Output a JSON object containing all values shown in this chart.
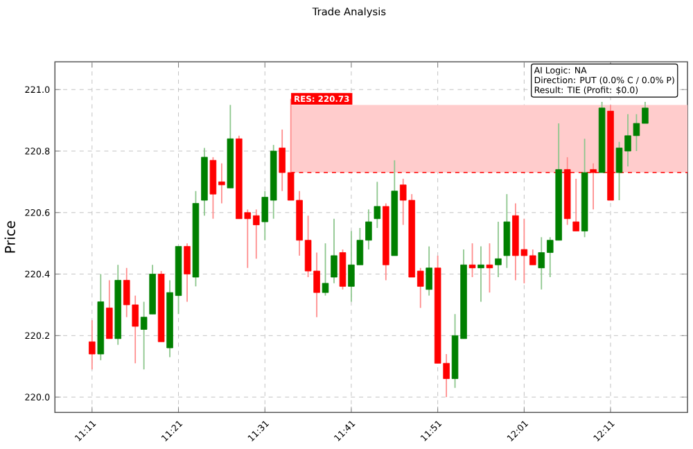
{
  "chart_data": {
    "type": "candlestick",
    "title": "Trade Analysis",
    "ylabel": "Price",
    "x": [
      11.1833,
      11.2,
      11.2167,
      11.2333,
      11.25,
      11.2667,
      11.2833,
      11.3,
      11.3167,
      11.3333,
      11.35,
      11.3667,
      11.3833,
      11.4,
      11.4167,
      11.4333,
      11.45,
      11.4667,
      11.4833,
      11.5,
      11.5167,
      11.5333,
      11.55,
      11.5667,
      11.5833,
      11.6,
      11.6167,
      11.6333,
      11.65,
      11.6667,
      11.6833,
      11.7,
      11.7167,
      11.7333,
      11.75,
      11.7667,
      11.7833,
      11.8,
      11.8167,
      11.8333,
      11.85,
      11.8667,
      11.8833,
      11.9,
      11.9167,
      11.9333,
      11.95,
      11.9667,
      11.9833,
      12.0,
      12.0167,
      12.0333,
      12.05,
      12.0667,
      12.0833,
      12.1,
      12.1167,
      12.1333,
      12.15,
      12.1667,
      12.1833,
      12.2,
      12.2167,
      12.2333,
      12.25
    ],
    "ohlc": [
      [
        220.18,
        220.25,
        220.09,
        220.14
      ],
      [
        220.14,
        220.4,
        220.12,
        220.31
      ],
      [
        220.29,
        220.38,
        220.19,
        220.19
      ],
      [
        220.19,
        220.43,
        220.17,
        220.38
      ],
      [
        220.38,
        220.42,
        220.26,
        220.3
      ],
      [
        220.3,
        220.33,
        220.11,
        220.23
      ],
      [
        220.22,
        220.31,
        220.09,
        220.26
      ],
      [
        220.27,
        220.43,
        220.27,
        220.4
      ],
      [
        220.4,
        220.41,
        220.18,
        220.18
      ],
      [
        220.16,
        220.38,
        220.13,
        220.34
      ],
      [
        220.33,
        220.49,
        220.27,
        220.49
      ],
      [
        220.49,
        220.5,
        220.31,
        220.4
      ],
      [
        220.39,
        220.67,
        220.36,
        220.63
      ],
      [
        220.64,
        220.81,
        220.59,
        220.78
      ],
      [
        220.77,
        220.78,
        220.58,
        220.66
      ],
      [
        220.7,
        220.76,
        220.63,
        220.69
      ],
      [
        220.68,
        220.95,
        220.68,
        220.84
      ],
      [
        220.84,
        220.85,
        220.58,
        220.58
      ],
      [
        220.6,
        220.61,
        220.42,
        220.58
      ],
      [
        220.59,
        220.61,
        220.45,
        220.56
      ],
      [
        220.57,
        220.67,
        220.51,
        220.65
      ],
      [
        220.64,
        220.82,
        220.58,
        220.8
      ],
      [
        220.81,
        220.87,
        220.67,
        220.73
      ],
      [
        220.73,
        220.97,
        220.64,
        220.64
      ],
      [
        220.64,
        220.67,
        220.46,
        220.51
      ],
      [
        220.51,
        220.59,
        220.39,
        220.41
      ],
      [
        220.41,
        220.47,
        220.26,
        220.34
      ],
      [
        220.34,
        220.5,
        220.33,
        220.37
      ],
      [
        220.39,
        220.58,
        220.37,
        220.46
      ],
      [
        220.47,
        220.48,
        220.35,
        220.36
      ],
      [
        220.36,
        220.54,
        220.31,
        220.43
      ],
      [
        220.43,
        220.55,
        220.43,
        220.51
      ],
      [
        220.51,
        220.61,
        220.48,
        220.57
      ],
      [
        220.58,
        220.7,
        220.55,
        220.62
      ],
      [
        220.62,
        220.63,
        220.38,
        220.43
      ],
      [
        220.46,
        220.77,
        220.46,
        220.67
      ],
      [
        220.69,
        220.71,
        220.56,
        220.64
      ],
      [
        220.64,
        220.66,
        220.39,
        220.39
      ],
      [
        220.41,
        220.42,
        220.29,
        220.36
      ],
      [
        220.35,
        220.49,
        220.33,
        220.42
      ],
      [
        220.42,
        220.46,
        220.11,
        220.11
      ],
      [
        220.11,
        220.14,
        220.0,
        220.06
      ],
      [
        220.06,
        220.27,
        220.03,
        220.2
      ],
      [
        220.19,
        220.48,
        220.19,
        220.43
      ],
      [
        220.43,
        220.5,
        220.39,
        220.42
      ],
      [
        220.42,
        220.49,
        220.31,
        220.43
      ],
      [
        220.43,
        220.5,
        220.34,
        220.42
      ],
      [
        220.43,
        220.57,
        220.39,
        220.45
      ],
      [
        220.46,
        220.66,
        220.42,
        220.57
      ],
      [
        220.59,
        220.63,
        220.38,
        220.46
      ],
      [
        220.48,
        220.58,
        220.37,
        220.46
      ],
      [
        220.46,
        220.48,
        220.43,
        220.43
      ],
      [
        220.42,
        220.52,
        220.35,
        220.47
      ],
      [
        220.47,
        220.52,
        220.39,
        220.51
      ],
      [
        220.51,
        220.89,
        220.51,
        220.74
      ],
      [
        220.74,
        220.78,
        220.56,
        220.58
      ],
      [
        220.57,
        220.71,
        220.54,
        220.54
      ],
      [
        220.54,
        220.84,
        220.52,
        220.73
      ],
      [
        220.74,
        220.76,
        220.61,
        220.73
      ],
      [
        220.73,
        220.96,
        220.73,
        220.94
      ],
      [
        220.93,
        220.95,
        220.64,
        220.64
      ],
      [
        220.73,
        220.83,
        220.64,
        220.81
      ],
      [
        220.8,
        220.92,
        220.75,
        220.85
      ],
      [
        220.85,
        220.92,
        220.8,
        220.89
      ],
      [
        220.89,
        220.96,
        220.89,
        220.94
      ]
    ],
    "colors": [
      "#ff0000",
      "#008000",
      "#ff0000",
      "#008000",
      "#ff0000",
      "#ff0000",
      "#008000",
      "#008000",
      "#ff0000",
      "#008000",
      "#008000",
      "#ff0000",
      "#008000",
      "#008000",
      "#ff0000",
      "#ff0000",
      "#008000",
      "#ff0000",
      "#ff0000",
      "#ff0000",
      "#008000",
      "#008000",
      "#ff0000",
      "#ff0000",
      "#ff0000",
      "#ff0000",
      "#ff0000",
      "#008000",
      "#008000",
      "#ff0000",
      "#008000",
      "#008000",
      "#008000",
      "#008000",
      "#ff0000",
      "#008000",
      "#ff0000",
      "#ff0000",
      "#ff0000",
      "#008000",
      "#ff0000",
      "#ff0000",
      "#008000",
      "#008000",
      "#ff0000",
      "#008000",
      "#ff0000",
      "#008000",
      "#008000",
      "#ff0000",
      "#ff0000",
      "#ff0000",
      "#008000",
      "#008000",
      "#008000",
      "#ff0000",
      "#ff0000",
      "#008000",
      "#ff0000",
      "#008000",
      "#ff0000",
      "#008000",
      "#008000",
      "#008000",
      "#008000"
    ],
    "xlim": [
      11.1117,
      12.3317
    ],
    "ylim": [
      219.95,
      221.09
    ],
    "xticks": [
      {
        "value": 11.1833,
        "label": "11:11"
      },
      {
        "value": 11.35,
        "label": "11:21"
      },
      {
        "value": 11.5167,
        "label": "11:31"
      },
      {
        "value": 11.6833,
        "label": "11:41"
      },
      {
        "value": 11.85,
        "label": "11:51"
      },
      {
        "value": 12.0167,
        "label": "12:01"
      },
      {
        "value": 12.1833,
        "label": "12:11"
      }
    ],
    "yticks": [
      {
        "value": 220.0,
        "label": "220.0"
      },
      220.2,
      220.4,
      220.6,
      220.8,
      {
        "value": 221.0,
        "label": "221.0"
      }
    ],
    "grid": true,
    "bands": [
      {
        "axis": "y",
        "from": 220.73,
        "to": 220.95,
        "color": "#ffcccc"
      }
    ],
    "ref_lines": [
      {
        "axis": "y",
        "value": 220.73,
        "color": "#ff0000",
        "line_style": "dashed"
      }
    ],
    "annotations": [
      "AI Logic: NA",
      "Direction: PUT (0.0% C / 0.0% P)",
      "Result: TIE (Profit: $0.0)",
      {
        "text": "RES: 220.73",
        "x": 11.5667,
        "y": 220.95
      }
    ]
  }
}
